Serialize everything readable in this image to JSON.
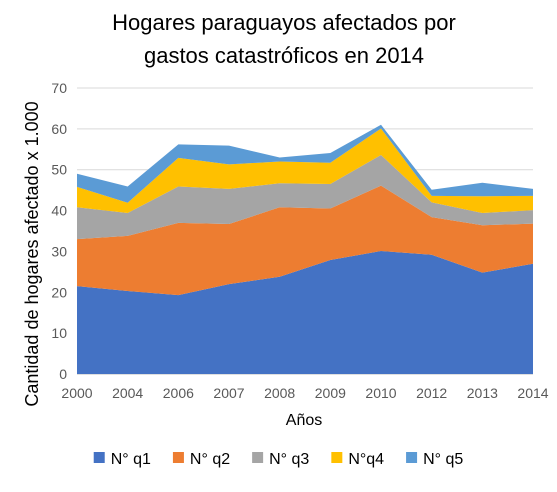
{
  "chart_data": {
    "type": "area",
    "stacked": true,
    "title_lines": [
      "Hogares paraguayos afectados por",
      "gastos catastróficos en 2014"
    ],
    "xlabel": "Años",
    "ylabel": "Cantidad de hogares afectado x 1.000",
    "categories": [
      "2000",
      "2004",
      "2006",
      "2007",
      "2008",
      "2009",
      "2010",
      "2012",
      "2013",
      "2014"
    ],
    "ylim": [
      0,
      70
    ],
    "yticks": [
      "0",
      "10",
      "20",
      "30",
      "40",
      "50",
      "60",
      "70"
    ],
    "grid": true,
    "legend_position": "bottom",
    "series": [
      {
        "name": "N° q1",
        "color": "#4472C4",
        "values": [
          21.5,
          20.3,
          19.3,
          22.0,
          23.8,
          27.9,
          30.1,
          29.2,
          24.8,
          27.0
        ]
      },
      {
        "name": "N° q2",
        "color": "#ED7D31",
        "values": [
          11.5,
          13.5,
          17.7,
          14.7,
          17.0,
          12.6,
          16.0,
          9.2,
          11.6,
          9.8
        ]
      },
      {
        "name": "N° q3",
        "color": "#A5A5A5",
        "values": [
          7.8,
          5.6,
          8.9,
          8.6,
          5.9,
          6.0,
          7.5,
          3.6,
          3.0,
          3.3
        ]
      },
      {
        "name": "N°q4",
        "color": "#FFC000",
        "values": [
          5.0,
          2.5,
          7.0,
          6.0,
          5.3,
          5.2,
          6.5,
          1.6,
          4.1,
          3.5
        ]
      },
      {
        "name": "N° q5",
        "color": "#5B9BD5",
        "values": [
          3.2,
          4.0,
          3.3,
          4.6,
          1.0,
          2.4,
          0.9,
          1.5,
          3.3,
          1.7
        ]
      }
    ]
  }
}
